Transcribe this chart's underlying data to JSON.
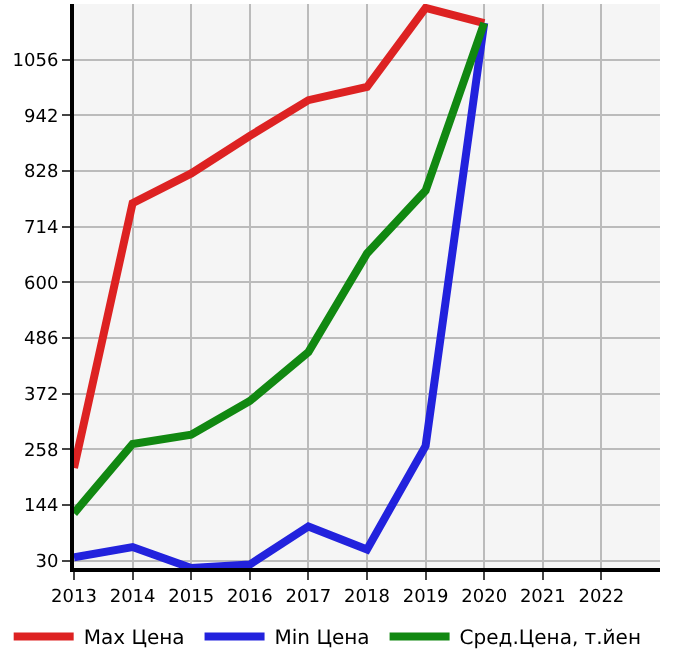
{
  "chart_data": {
    "type": "line",
    "x": [
      2013,
      2014,
      2015,
      2016,
      2017,
      2018,
      2019,
      2020
    ],
    "series": [
      {
        "name": "Max Цена",
        "color": "#dd2222",
        "values": [
          220,
          762,
          823,
          900,
          973,
          1000,
          1162,
          1131
        ]
      },
      {
        "name": "Min Цена",
        "color": "#2222dd",
        "values": [
          37,
          58,
          15,
          22,
          100,
          53,
          265,
          1131
        ]
      },
      {
        "name": "Сред.Цена, т.йен",
        "color": "#118811",
        "values": [
          127,
          269,
          288,
          357,
          457,
          659,
          788,
          1131
        ]
      }
    ],
    "xlim": [
      2013,
      2023
    ],
    "xticks": [
      2013,
      2014,
      2015,
      2016,
      2017,
      2018,
      2019,
      2020,
      2021,
      2022
    ],
    "ylim": [
      15,
      1170
    ],
    "yticks": [
      30,
      144,
      258,
      372,
      486,
      600,
      714,
      828,
      942,
      1056
    ],
    "grid": true,
    "legend": "bottom",
    "marker": "none",
    "line_style": "solid"
  }
}
